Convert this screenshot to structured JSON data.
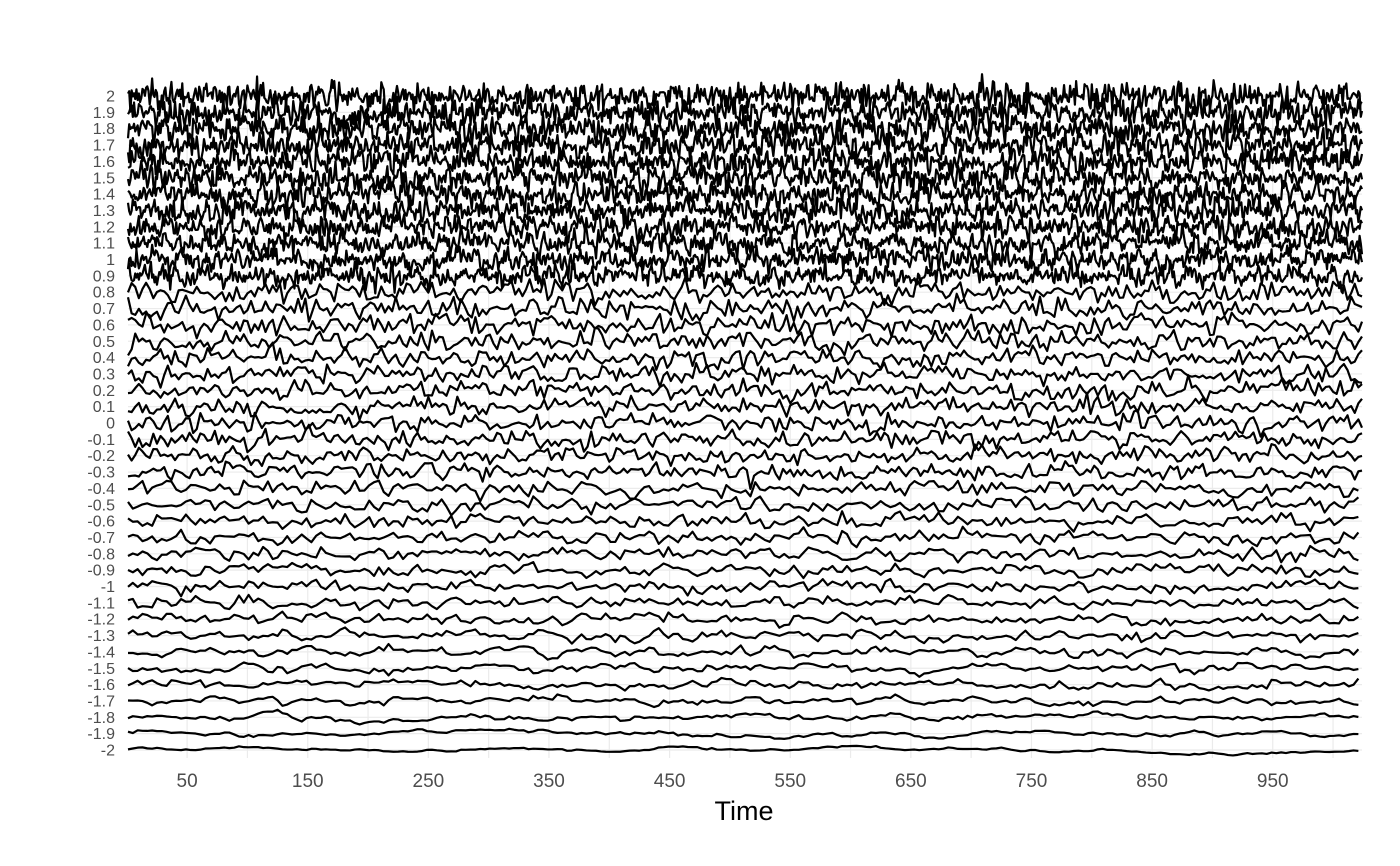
{
  "chart_data": {
    "type": "line",
    "title": "",
    "xlabel": "Time",
    "ylabel": "",
    "xlim": [
      1,
      1024
    ],
    "ylim": [
      -2,
      2
    ],
    "x_ticks": [
      50,
      150,
      250,
      350,
      450,
      550,
      650,
      750,
      850,
      950
    ],
    "y_tick_labels": [
      "2",
      "1.9",
      "1.8",
      "1.7",
      "1.6",
      "1.5",
      "1.4",
      "1.3",
      "1.2",
      "1.1",
      "1",
      "0.9",
      "0.8",
      "0.7",
      "0.6",
      "0.5",
      "0.4",
      "0.3",
      "0.2",
      "0.1",
      "0",
      "-0.1",
      "-0.2",
      "-0.3",
      "-0.4",
      "-0.5",
      "-0.6",
      "-0.7",
      "-0.8",
      "-0.9",
      "-1",
      "-1.1",
      "-1.2",
      "-1.3",
      "-1.4",
      "-1.5",
      "-1.6",
      "-1.7",
      "-1.8",
      "-1.9",
      "-2"
    ],
    "series_hurst_levels": [
      2,
      1.9,
      1.8,
      1.7,
      1.6,
      1.5,
      1.4,
      1.3,
      1.2,
      1.1,
      1,
      0.9,
      0.8,
      0.7,
      0.6,
      0.5,
      0.4,
      0.3,
      0.2,
      0.1,
      0,
      -0.1,
      -0.2,
      -0.3,
      -0.4,
      -0.5,
      -0.6,
      -0.7,
      -0.8,
      -0.9,
      -1,
      -1.1,
      -1.2,
      -1.3,
      -1.4,
      -1.5,
      -1.6,
      -1.7,
      -1.8,
      -1.9,
      -2
    ],
    "grid": true,
    "line_color": "#000000",
    "grid_color": "#ebebeb",
    "legend": "none"
  }
}
